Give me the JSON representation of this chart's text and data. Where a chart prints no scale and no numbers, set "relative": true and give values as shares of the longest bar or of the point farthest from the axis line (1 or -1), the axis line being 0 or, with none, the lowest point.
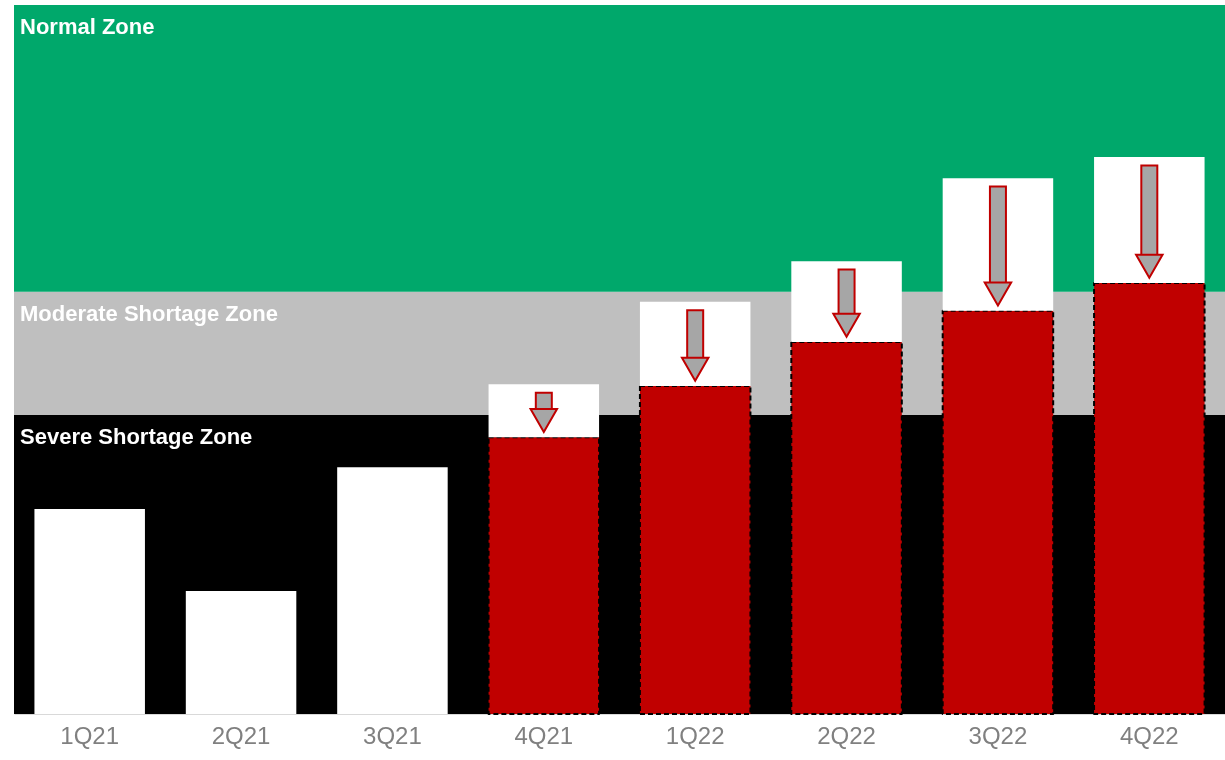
{
  "chart_data": {
    "type": "bar",
    "relative": true,
    "stacked": true,
    "categories": [
      "1Q21",
      "2Q21",
      "3Q21",
      "4Q21",
      "1Q22",
      "2Q22",
      "3Q22",
      "4Q22"
    ],
    "series": [
      {
        "color": "#c00000",
        "line_style": "dashed",
        "values": [
          null,
          null,
          null,
          0.497,
          0.589,
          0.668,
          0.724,
          0.774
        ]
      },
      {
        "color": "#ffffff",
        "values": [
          0.368,
          0.221,
          0.443,
          0.095,
          0.151,
          0.145,
          0.238,
          0.226
        ]
      }
    ],
    "bands": [
      {
        "axis": "y",
        "from": 0,
        "to": 0.537,
        "label": "Severe Shortage Zone",
        "color": "#000000"
      },
      {
        "axis": "y",
        "from": 0.537,
        "to": 0.758,
        "label": "Moderate Shortage Zone",
        "color": "#bfbfbf"
      },
      {
        "axis": "y",
        "from": 0.758,
        "to": 1.273,
        "label": "Normal Zone",
        "color": "#00a86b"
      }
    ]
  }
}
